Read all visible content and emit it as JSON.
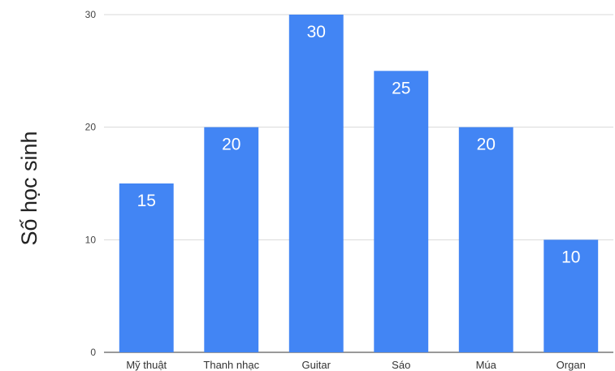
{
  "chart_data": {
    "type": "bar",
    "title": "",
    "xlabel": "",
    "ylabel": "Số học sinh",
    "categories": [
      "Mỹ thuật",
      "Thanh nhạc",
      "Guitar",
      "Sáo",
      "Múa",
      "Organ"
    ],
    "values": [
      15,
      20,
      30,
      25,
      20,
      10
    ],
    "ylim": [
      0,
      30
    ],
    "yticks": [
      0,
      10,
      20,
      30
    ],
    "grid": true,
    "data_labels": true,
    "bar_color": "#4285f4",
    "legend": "none"
  }
}
